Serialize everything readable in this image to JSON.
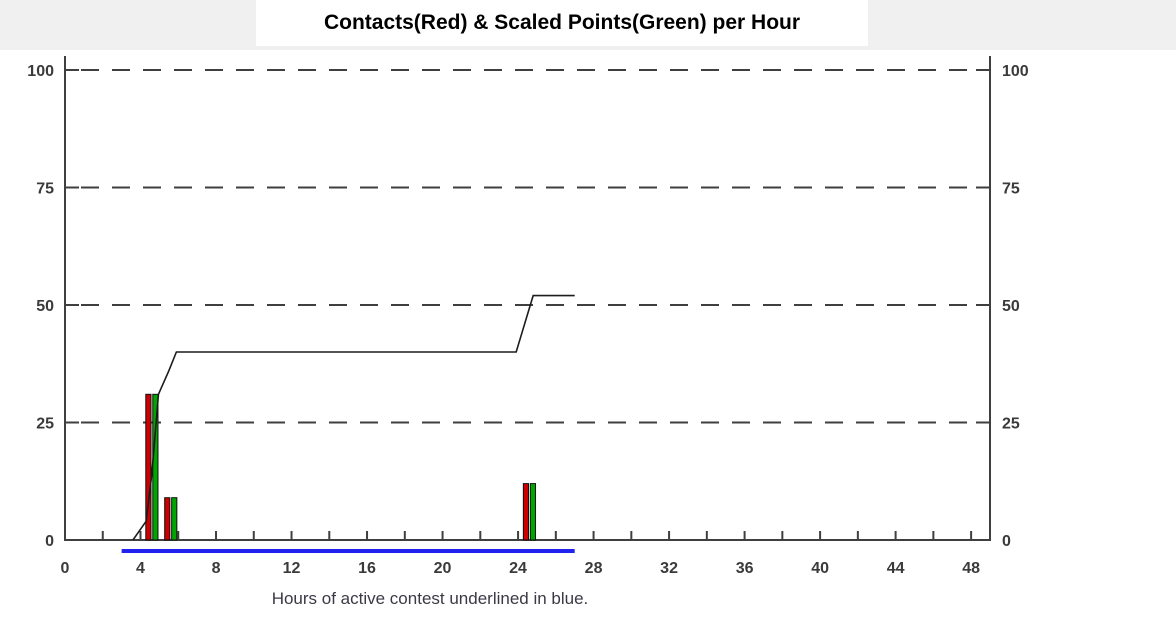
{
  "chart_data": {
    "type": "bar+line",
    "title": "Contacts(Red) & Scaled Points(Green) per Hour",
    "caption": "Hours of active contest underlined in blue.",
    "x_axis": {
      "min": 0,
      "max": 49,
      "label_ticks": [
        0,
        4,
        8,
        12,
        16,
        20,
        24,
        28,
        32,
        36,
        40,
        44,
        48
      ],
      "minor_tick_step": 2
    },
    "y_axis": {
      "min": 0,
      "max": 100,
      "ticks": [
        0,
        25,
        50,
        75,
        100
      ],
      "sides": "both",
      "gridlines": "dashed"
    },
    "bars": {
      "hours": [
        4,
        5,
        24
      ],
      "series": [
        {
          "name": "Contacts",
          "color": "#cc0000",
          "values": [
            31,
            9,
            12
          ]
        },
        {
          "name": "Scaled Points",
          "color": "#00a500",
          "values": [
            31,
            9,
            12
          ]
        }
      ]
    },
    "cumulative_line": {
      "name": "Cumulative Scaled Points",
      "color": "#1c1c1c",
      "points": [
        [
          3.6,
          0
        ],
        [
          3.95,
          2
        ],
        [
          4.3,
          4
        ],
        [
          4.6,
          14
        ],
        [
          4.95,
          31
        ],
        [
          5.5,
          36
        ],
        [
          5.9,
          40
        ],
        [
          23.9,
          40
        ],
        [
          24.2,
          44
        ],
        [
          24.8,
          52
        ],
        [
          27,
          52
        ]
      ]
    },
    "active_contest": {
      "start_hour": 3,
      "end_hour": 27,
      "color": "#2222ee"
    }
  },
  "colors": {
    "header_band": "#f0f0f0",
    "axis": "#3f3f3f",
    "grid": "#3f3f3f",
    "tick_label": "#3a3a3a",
    "bar_border": "#111111"
  }
}
